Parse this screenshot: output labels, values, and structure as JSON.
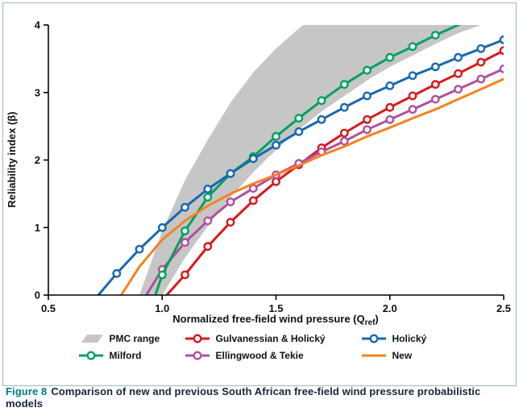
{
  "chart_data": {
    "type": "line",
    "title": "",
    "xlabel": {
      "pre": "Normalized free-field wind pressure (Q",
      "sub": "ref",
      "post": ")"
    },
    "ylabel": "Reliability index (β)",
    "xlim": [
      0.5,
      2.5
    ],
    "ylim": [
      0,
      4
    ],
    "xticks": [
      "0.5",
      "1.0",
      "1.5",
      "2.0",
      "2.5"
    ],
    "xtick_values": [
      0.5,
      1.0,
      1.5,
      2.0,
      2.5
    ],
    "yticks": [
      "0",
      "1",
      "2",
      "3",
      "4"
    ],
    "ytick_values": [
      0,
      1,
      2,
      3,
      4
    ],
    "grid": false,
    "legend_position": "bottom",
    "band": {
      "name": "PMC range",
      "color": "#c6c6c6",
      "x": [
        0.9,
        1.0,
        1.1,
        1.2,
        1.3,
        1.4,
        1.5,
        1.6,
        1.7,
        1.8,
        1.9,
        2.0,
        2.1,
        2.2,
        2.3,
        2.4,
        2.5
      ],
      "upper": [
        0.0,
        0.95,
        1.7,
        2.3,
        2.85,
        3.3,
        3.65,
        3.95,
        4.2,
        4.4,
        4.55,
        4.7,
        4.8,
        4.9,
        5.0,
        5.1,
        5.2
      ],
      "lower": [
        -0.6,
        0.0,
        0.55,
        1.02,
        1.45,
        1.82,
        2.15,
        2.45,
        2.72,
        2.95,
        3.18,
        3.38,
        3.55,
        3.72,
        3.88,
        4.0,
        4.12
      ]
    },
    "series": [
      {
        "name": "Gulvanessian & Holický",
        "color": "#d7191c",
        "markers": true,
        "x": [
          1.02,
          1.1,
          1.2,
          1.3,
          1.4,
          1.5,
          1.6,
          1.7,
          1.8,
          1.9,
          2.0,
          2.1,
          2.2,
          2.3,
          2.4,
          2.5
        ],
        "y": [
          0.0,
          0.3,
          0.72,
          1.08,
          1.4,
          1.68,
          1.93,
          2.18,
          2.4,
          2.6,
          2.78,
          2.95,
          3.12,
          3.28,
          3.45,
          3.62
        ]
      },
      {
        "name": "Ellingwood & Tekie",
        "color": "#b0509f",
        "markers": true,
        "x": [
          0.93,
          1.0,
          1.1,
          1.2,
          1.3,
          1.4,
          1.5,
          1.6,
          1.7,
          1.8,
          1.9,
          2.0,
          2.1,
          2.2,
          2.3,
          2.4,
          2.5
        ],
        "y": [
          0.0,
          0.38,
          0.78,
          1.1,
          1.38,
          1.58,
          1.78,
          1.95,
          2.12,
          2.28,
          2.45,
          2.6,
          2.75,
          2.9,
          3.05,
          3.2,
          3.35
        ]
      },
      {
        "name": "Milford",
        "color": "#00a160",
        "markers": true,
        "x": [
          0.97,
          1.0,
          1.1,
          1.2,
          1.3,
          1.4,
          1.5,
          1.6,
          1.7,
          1.8,
          1.9,
          2.0,
          2.1,
          2.2,
          2.3,
          2.35
        ],
        "y": [
          0.0,
          0.3,
          0.95,
          1.45,
          1.8,
          2.05,
          2.35,
          2.62,
          2.88,
          3.12,
          3.33,
          3.52,
          3.68,
          3.85,
          4.0,
          4.08
        ]
      },
      {
        "name": "Holický",
        "color": "#1868ae",
        "markers": true,
        "x": [
          0.72,
          0.8,
          0.9,
          1.0,
          1.1,
          1.2,
          1.3,
          1.4,
          1.5,
          1.6,
          1.7,
          1.8,
          1.9,
          2.0,
          2.1,
          2.2,
          2.3,
          2.4,
          2.5
        ],
        "y": [
          0.0,
          0.32,
          0.68,
          1.0,
          1.3,
          1.57,
          1.8,
          2.02,
          2.22,
          2.42,
          2.6,
          2.78,
          2.95,
          3.1,
          3.25,
          3.38,
          3.52,
          3.65,
          3.78
        ]
      },
      {
        "name": "New",
        "color": "#f58220",
        "markers": false,
        "x": [
          0.82,
          0.9,
          1.0,
          1.1,
          1.2,
          1.3,
          1.4,
          1.5,
          1.6,
          1.7,
          1.8,
          1.9,
          2.0,
          2.1,
          2.2,
          2.3,
          2.4,
          2.5
        ],
        "y": [
          0.0,
          0.42,
          0.82,
          1.1,
          1.32,
          1.5,
          1.65,
          1.78,
          1.92,
          2.07,
          2.2,
          2.35,
          2.48,
          2.62,
          2.75,
          2.9,
          3.05,
          3.2
        ]
      }
    ]
  },
  "legend": {
    "rows": [
      [
        {
          "swatch": "band",
          "label": "PMC range",
          "color": "#c6c6c6"
        },
        {
          "swatch": "marker",
          "label": "Gulvanessian & Holický",
          "color": "#d7191c"
        },
        {
          "swatch": "marker",
          "label": "Holický",
          "color": "#1868ae"
        }
      ],
      [
        {
          "swatch": "marker",
          "label": "Milford",
          "color": "#00a160"
        },
        {
          "swatch": "marker",
          "label": "Ellingwood & Tekie",
          "color": "#b0509f"
        },
        {
          "swatch": "line",
          "label": "New",
          "color": "#f58220"
        }
      ]
    ]
  },
  "caption": {
    "prefix": "Figure 8",
    "text": "Comparison of new and previous South African free-field wind pressure probabilistic models"
  },
  "colors": {
    "axis": "#000000",
    "frame_border": "#9db8bd",
    "caption_accent": "#00798c",
    "caption_text": "#18243a"
  }
}
